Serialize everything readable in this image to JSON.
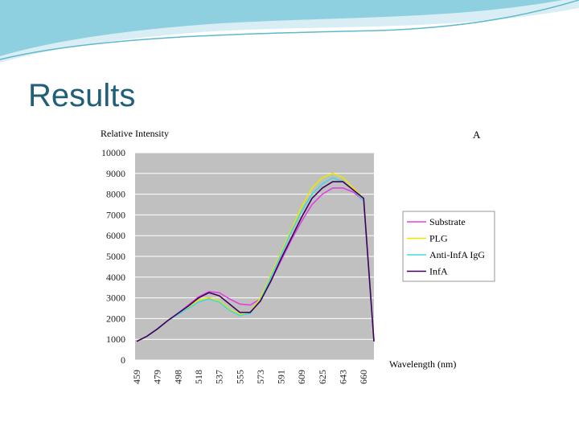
{
  "slide_title": "Results",
  "chart_data": {
    "type": "line",
    "ylabel": "Relative Intensity",
    "xlabel": "Wavelength (nm)",
    "annotation": "A",
    "categories": [
      "459",
      null,
      "479",
      null,
      "498",
      null,
      "518",
      null,
      "537",
      null,
      "555",
      null,
      "573",
      null,
      "591",
      null,
      "609",
      null,
      "625",
      null,
      "643",
      null,
      "660",
      null
    ],
    "series": [
      {
        "name": "Substrate",
        "color": "#e040e0",
        "values": [
          900,
          1150,
          1500,
          1900,
          2250,
          2650,
          3050,
          3300,
          3250,
          2950,
          2700,
          2650,
          2950,
          3800,
          4800,
          5800,
          6700,
          7500,
          8000,
          8300,
          8300,
          8100,
          7700,
          900
        ]
      },
      {
        "name": "PLG",
        "color": "#e8e800",
        "values": [
          900,
          1150,
          1500,
          1900,
          2250,
          2550,
          2900,
          3000,
          2850,
          2450,
          2200,
          2300,
          3000,
          4100,
          5200,
          6300,
          7400,
          8300,
          8800,
          9000,
          8800,
          8300,
          7800,
          900
        ]
      },
      {
        "name": "Anti-InfA IgG",
        "color": "#40d8e0",
        "values": [
          900,
          1150,
          1500,
          1900,
          2200,
          2500,
          2800,
          2950,
          2800,
          2400,
          2150,
          2250,
          2900,
          4000,
          5100,
          6200,
          7200,
          8000,
          8500,
          8800,
          8600,
          8200,
          7700,
          900
        ]
      },
      {
        "name": "InfA",
        "color": "#400060",
        "values": [
          900,
          1150,
          1500,
          1900,
          2250,
          2600,
          3000,
          3250,
          3100,
          2700,
          2300,
          2300,
          2850,
          3800,
          4900,
          5900,
          6900,
          7800,
          8300,
          8600,
          8600,
          8200,
          7800,
          900
        ]
      }
    ],
    "ylim": [
      0,
      10000
    ],
    "yticks": [
      0,
      1000,
      2000,
      3000,
      4000,
      5000,
      6000,
      7000,
      8000,
      9000,
      10000
    ],
    "grid": true,
    "legend": "right"
  }
}
